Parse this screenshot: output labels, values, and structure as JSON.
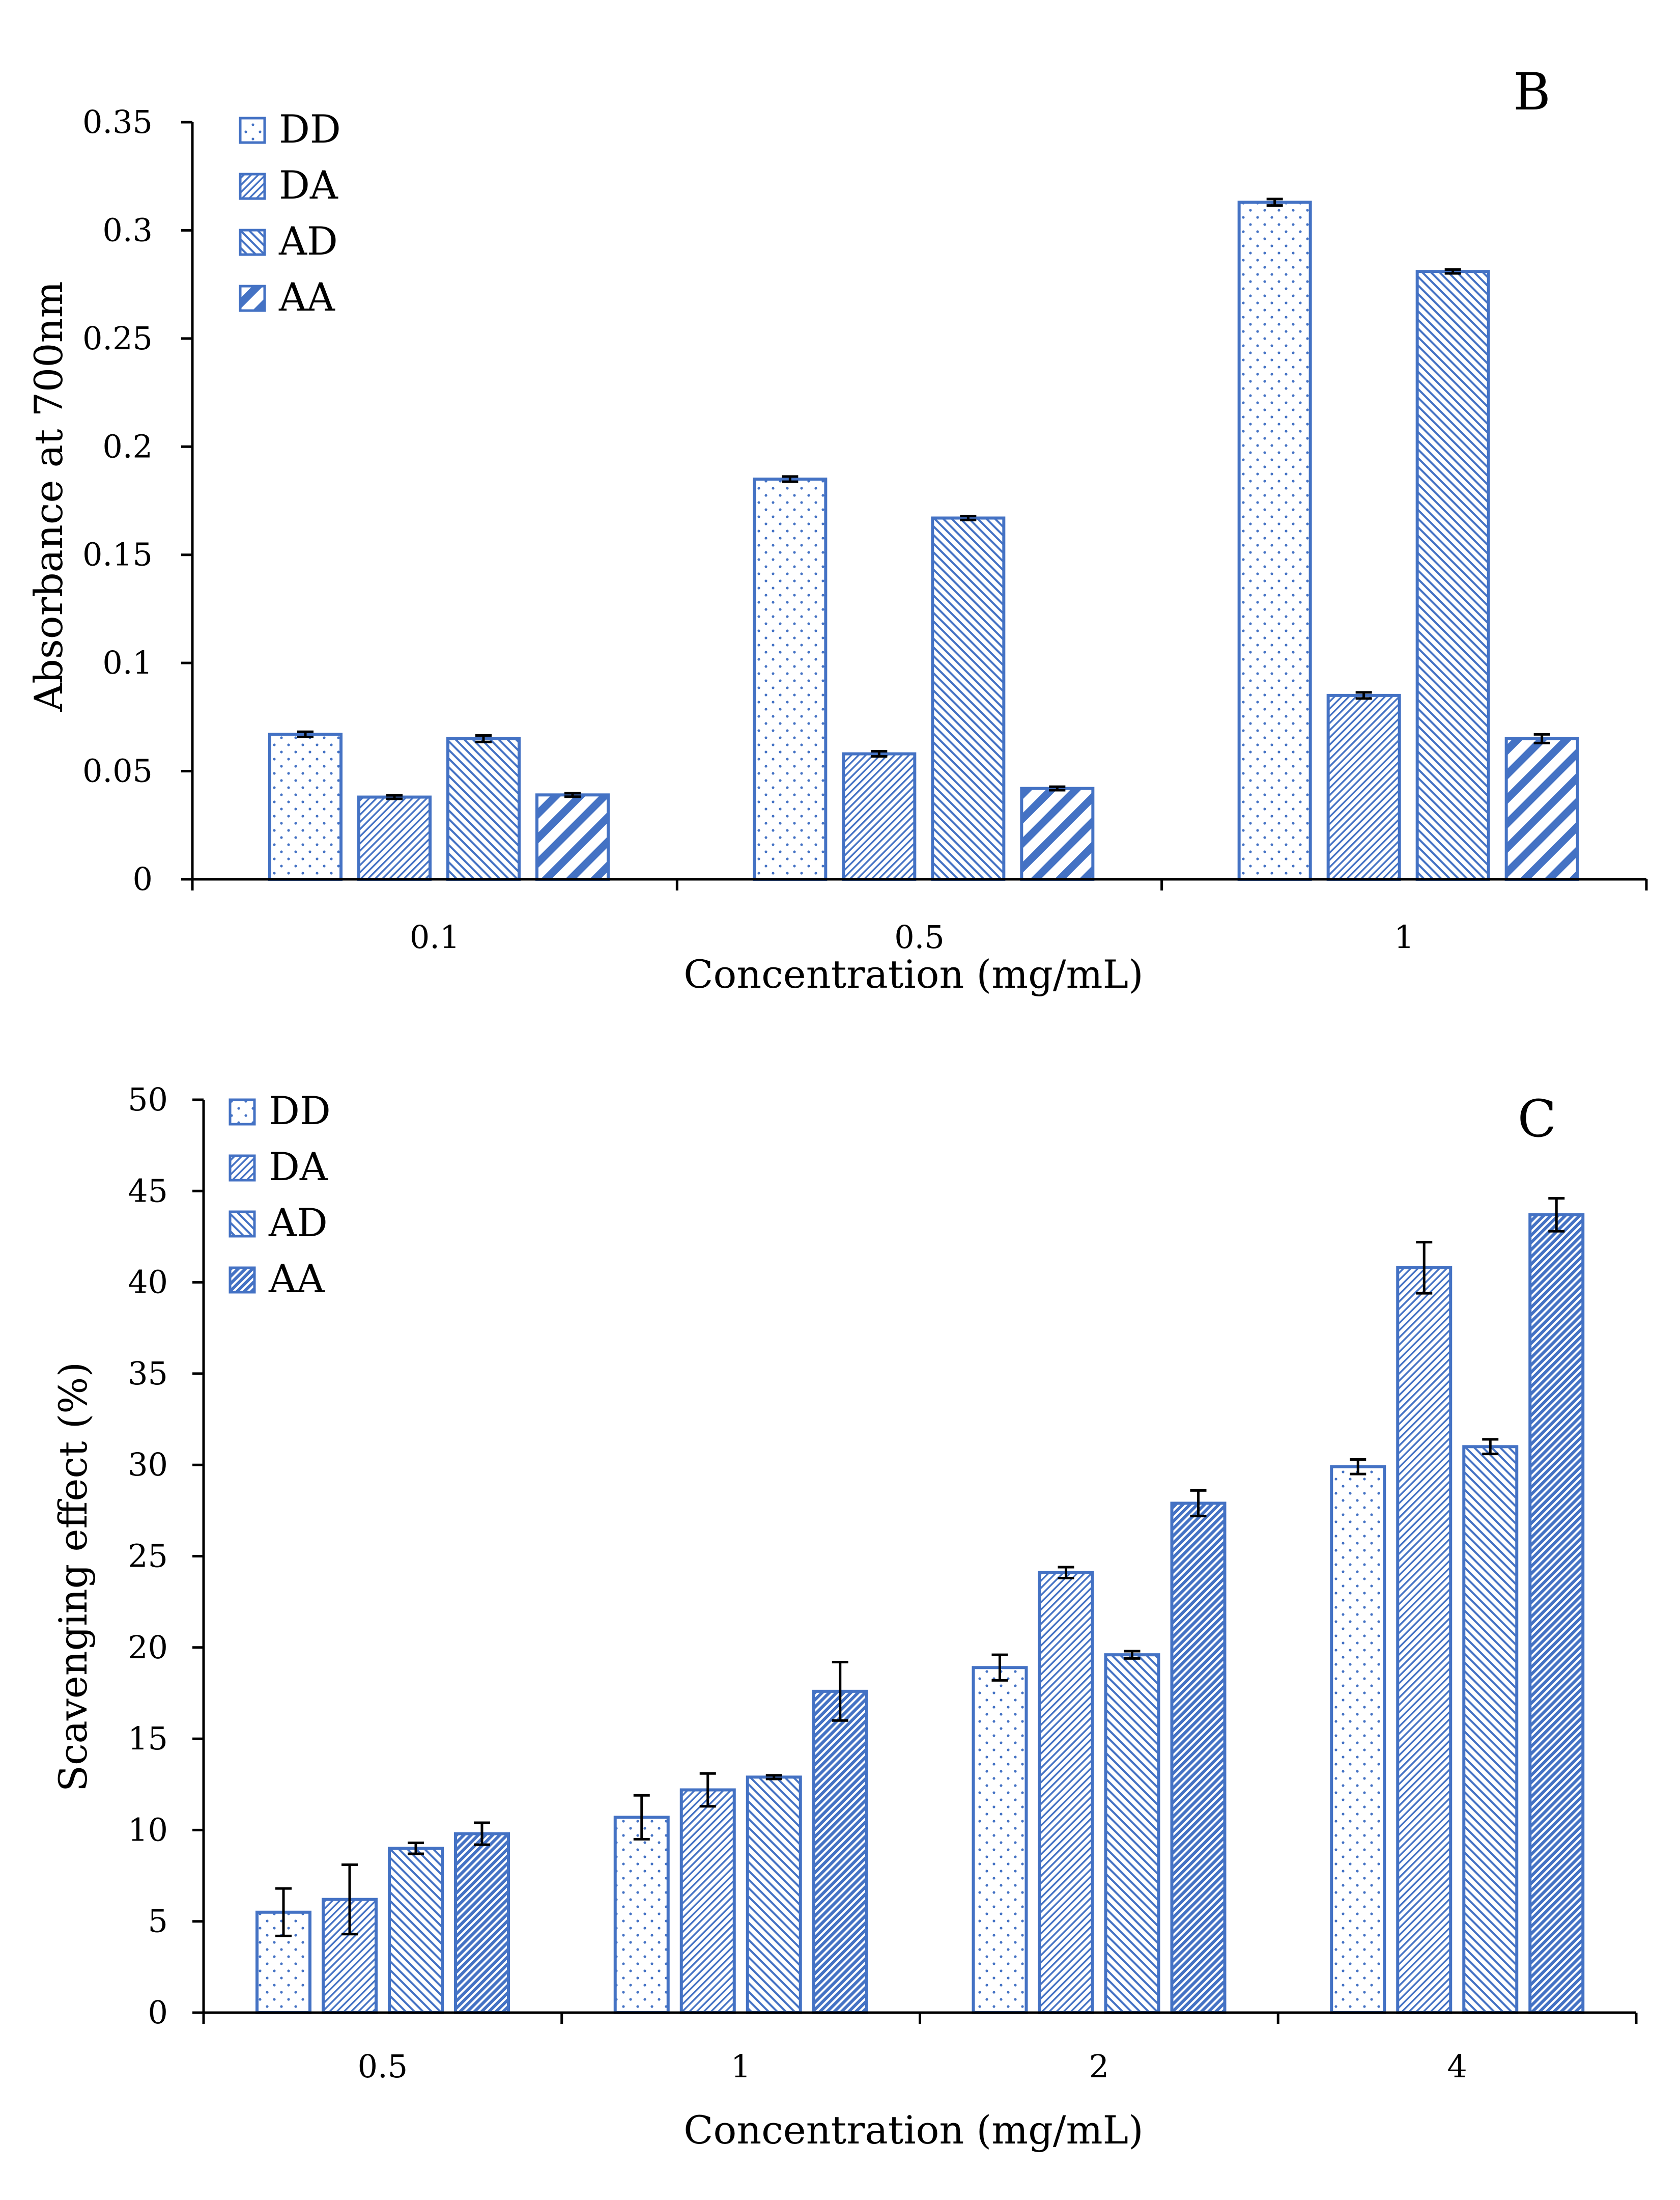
{
  "colors": {
    "bar_stroke": "#4472C4",
    "pattern": "#4472C4",
    "axis": "#000000",
    "error_bar": "#000000"
  },
  "chart_data": [
    {
      "type": "bar",
      "panel_label": "B",
      "xlabel": "Concentration (mg/mL)",
      "ylabel": "Absorbance at 700nm",
      "ylim": [
        0,
        0.35
      ],
      "yticks": [
        0,
        0.05,
        0.1,
        0.15,
        0.2,
        0.25,
        0.3,
        0.35
      ],
      "ytick_labels": [
        "0",
        "0.05",
        "0.1",
        "0.15",
        "0.2",
        "0.25",
        "0.3",
        "0.35"
      ],
      "categories": [
        "0.1",
        "0.5",
        "1"
      ],
      "legend_position": "top-left",
      "series": [
        {
          "name": "DD",
          "pattern": "dots",
          "values": [
            0.067,
            0.185,
            0.313
          ],
          "errors": [
            0.0012,
            0.0012,
            0.0015
          ]
        },
        {
          "name": "DA",
          "pattern": "fine-diagonal",
          "values": [
            0.038,
            0.058,
            0.085
          ],
          "errors": [
            0.0008,
            0.0012,
            0.0014
          ]
        },
        {
          "name": "AD",
          "pattern": "diagonal",
          "values": [
            0.065,
            0.167,
            0.281
          ],
          "errors": [
            0.0015,
            0.0009,
            0.0009
          ]
        },
        {
          "name": "AA",
          "pattern": "wide-diagonal",
          "values": [
            0.039,
            0.042,
            0.065
          ],
          "errors": [
            0.0008,
            0.0008,
            0.002
          ]
        }
      ]
    },
    {
      "type": "bar",
      "panel_label": "C",
      "xlabel": "Concentration (mg/mL)",
      "ylabel": "Scavenging effect (%)",
      "ylim": [
        0,
        50
      ],
      "yticks": [
        0,
        5,
        10,
        15,
        20,
        25,
        30,
        35,
        40,
        45,
        50
      ],
      "ytick_labels": [
        "0",
        "5",
        "10",
        "15",
        "20",
        "25",
        "30",
        "35",
        "40",
        "45",
        "50"
      ],
      "categories": [
        "0.5",
        "1",
        "2",
        "4"
      ],
      "legend_position": "top-left",
      "series": [
        {
          "name": "DD",
          "pattern": "dots",
          "values": [
            5.5,
            10.7,
            18.9,
            29.9
          ],
          "errors": [
            1.3,
            1.2,
            0.7,
            0.4
          ]
        },
        {
          "name": "DA",
          "pattern": "fine-diagonal",
          "values": [
            6.2,
            12.2,
            24.1,
            40.8
          ],
          "errors": [
            1.9,
            0.9,
            0.3,
            1.4
          ]
        },
        {
          "name": "AD",
          "pattern": "diagonal",
          "values": [
            9.0,
            12.9,
            19.6,
            31.0
          ],
          "errors": [
            0.3,
            0.1,
            0.2,
            0.4
          ]
        },
        {
          "name": "AA",
          "pattern": "dense-diagonal",
          "values": [
            9.8,
            17.6,
            27.9,
            43.7
          ],
          "errors": [
            0.6,
            1.6,
            0.7,
            0.9
          ]
        }
      ]
    }
  ]
}
